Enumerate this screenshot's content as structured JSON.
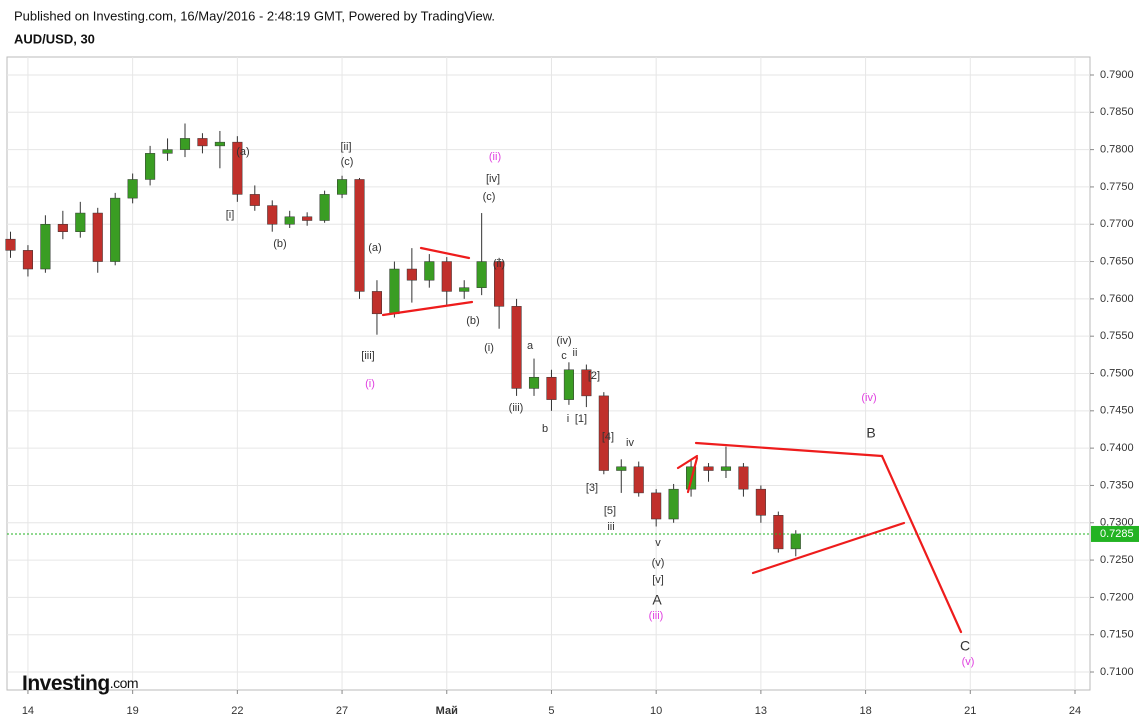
{
  "header": {
    "published": "Published on Investing.com, 16/May/2016 - 2:48:19 GMT, Powered by TradingView.",
    "symbol": "AUD/USD, 30"
  },
  "logo": {
    "brand": "Investing",
    "suffix": ".com"
  },
  "chart_data": {
    "type": "candlestick",
    "x": [
      -0.5,
      0,
      0.5,
      1,
      1.5,
      2,
      2.5,
      3,
      3.5,
      4,
      4.5,
      5,
      5.5,
      6,
      6.5,
      7,
      7.5,
      8,
      8.5,
      9,
      9.5,
      10,
      10.5,
      11,
      11.5,
      12,
      12.5,
      13,
      13.5,
      14,
      14.5,
      15,
      15.5,
      16,
      16.5,
      17,
      17.5,
      18,
      18.5,
      19,
      19.5,
      20,
      20.5,
      21,
      21.5,
      22
    ],
    "open": [
      0.768,
      0.7665,
      0.764,
      0.77,
      0.769,
      0.7715,
      0.765,
      0.7735,
      0.776,
      0.7795,
      0.78,
      0.7815,
      0.7805,
      0.781,
      0.774,
      0.7725,
      0.77,
      0.771,
      0.7705,
      0.774,
      0.776,
      0.761,
      0.758,
      0.764,
      0.7625,
      0.765,
      0.761,
      0.7615,
      0.765,
      0.759,
      0.748,
      0.7495,
      0.7465,
      0.7505,
      0.747,
      0.737,
      0.7375,
      0.734,
      0.7305,
      0.7345,
      0.7375,
      0.737,
      0.7375,
      0.7345,
      0.731,
      0.7265
    ],
    "high": [
      0.769,
      0.7672,
      0.7712,
      0.7718,
      0.773,
      0.7722,
      0.7742,
      0.7768,
      0.7805,
      0.7815,
      0.7835,
      0.7822,
      0.7825,
      0.7818,
      0.7752,
      0.7732,
      0.7718,
      0.7716,
      0.7745,
      0.7765,
      0.7762,
      0.7625,
      0.765,
      0.7668,
      0.766,
      0.7656,
      0.7625,
      0.7715,
      0.7655,
      0.76,
      0.752,
      0.7505,
      0.7515,
      0.7512,
      0.7475,
      0.7385,
      0.7382,
      0.7345,
      0.7352,
      0.7385,
      0.738,
      0.7402,
      0.738,
      0.735,
      0.7315,
      0.729
    ],
    "low": [
      0.7655,
      0.763,
      0.7635,
      0.768,
      0.7682,
      0.7635,
      0.7645,
      0.7728,
      0.7752,
      0.7785,
      0.779,
      0.7795,
      0.7775,
      0.773,
      0.7718,
      0.769,
      0.7695,
      0.7698,
      0.7702,
      0.7735,
      0.76,
      0.7552,
      0.7575,
      0.7595,
      0.7615,
      0.759,
      0.76,
      0.7605,
      0.756,
      0.747,
      0.747,
      0.745,
      0.7458,
      0.7455,
      0.7365,
      0.734,
      0.7335,
      0.7295,
      0.73,
      0.7335,
      0.7355,
      0.736,
      0.7335,
      0.73,
      0.726,
      0.7255
    ],
    "close": [
      0.7665,
      0.764,
      0.77,
      0.769,
      0.7715,
      0.765,
      0.7735,
      0.776,
      0.7795,
      0.78,
      0.7815,
      0.7805,
      0.781,
      0.774,
      0.7725,
      0.77,
      0.771,
      0.7705,
      0.774,
      0.776,
      0.761,
      0.758,
      0.764,
      0.7625,
      0.765,
      0.761,
      0.7615,
      0.765,
      0.759,
      0.748,
      0.7495,
      0.7465,
      0.7505,
      0.747,
      0.737,
      0.7375,
      0.734,
      0.7305,
      0.7345,
      0.7375,
      0.737,
      0.7375,
      0.7345,
      0.731,
      0.7265,
      0.7285
    ],
    "up_color": "#3a9d23",
    "down_color": "#c0302b",
    "xlim": [
      -0.6,
      30.43
    ],
    "xticks": [
      {
        "value": 0,
        "label": "14"
      },
      {
        "value": 3,
        "label": "19"
      },
      {
        "value": 6,
        "label": "22"
      },
      {
        "value": 9,
        "label": "27"
      },
      {
        "value": 12,
        "label": "Май"
      },
      {
        "value": 15,
        "label": "5"
      },
      {
        "value": 18,
        "label": "10"
      },
      {
        "value": 21,
        "label": "13"
      },
      {
        "value": 24,
        "label": "18"
      },
      {
        "value": 27,
        "label": "21"
      },
      {
        "value": 30,
        "label": "24"
      }
    ],
    "ylim": [
      0.70759,
      0.79241
    ],
    "yticks": [
      {
        "value": 0.71,
        "label": "0.7100"
      },
      {
        "value": 0.715,
        "label": "0.7150"
      },
      {
        "value": 0.72,
        "label": "0.7200"
      },
      {
        "value": 0.725,
        "label": "0.7250"
      },
      {
        "value": 0.73,
        "label": "0.7300"
      },
      {
        "value": 0.735,
        "label": "0.7350"
      },
      {
        "value": 0.74,
        "label": "0.7400"
      },
      {
        "value": 0.745,
        "label": "0.7450"
      },
      {
        "value": 0.75,
        "label": "0.7500"
      },
      {
        "value": 0.755,
        "label": "0.7550"
      },
      {
        "value": 0.76,
        "label": "0.7600"
      },
      {
        "value": 0.765,
        "label": "0.7650"
      },
      {
        "value": 0.77,
        "label": "0.7700"
      },
      {
        "value": 0.775,
        "label": "0.7750"
      },
      {
        "value": 0.78,
        "label": "0.7800"
      },
      {
        "value": 0.785,
        "label": "0.7850"
      },
      {
        "value": 0.79,
        "label": "0.7900"
      }
    ],
    "grid": true,
    "last_price": {
      "value": 0.7285,
      "label": "0.7285",
      "color": "#22b322"
    },
    "annotations": [
      {
        "text": "(a)",
        "color": "#333"
      },
      {
        "text": "[ii]",
        "color": "#333"
      },
      {
        "text": "(c)",
        "color": "#333"
      },
      {
        "text": "(ii)",
        "color": "#e040e0"
      },
      {
        "text": "[iv]",
        "color": "#333"
      },
      {
        "text": "(c)",
        "color": "#333"
      },
      {
        "text": "[i]",
        "color": "#333"
      },
      {
        "text": "(b)",
        "color": "#333"
      },
      {
        "text": "(a)",
        "color": "#333"
      },
      {
        "text": "(ii)",
        "color": "#333"
      },
      {
        "text": "(b)",
        "color": "#333"
      },
      {
        "text": "(i)",
        "color": "#333"
      },
      {
        "text": "[iii]",
        "color": "#333"
      },
      {
        "text": "(i)",
        "color": "#e040e0"
      },
      {
        "text": "a",
        "color": "#333"
      },
      {
        "text": "(iv)",
        "color": "#333"
      },
      {
        "text": "c",
        "color": "#333"
      },
      {
        "text": "ii",
        "color": "#333"
      },
      {
        "text": "[2]",
        "color": "#333"
      },
      {
        "text": "(iii)",
        "color": "#333"
      },
      {
        "text": "b",
        "color": "#333"
      },
      {
        "text": "i",
        "color": "#333"
      },
      {
        "text": "[1]",
        "color": "#333"
      },
      {
        "text": "[4]",
        "color": "#333"
      },
      {
        "text": "iv",
        "color": "#333"
      },
      {
        "text": "[3]",
        "color": "#333"
      },
      {
        "text": "[5]",
        "color": "#333"
      },
      {
        "text": "iii",
        "color": "#333"
      },
      {
        "text": "v",
        "color": "#333"
      },
      {
        "text": "(v)",
        "color": "#333"
      },
      {
        "text": "[v]",
        "color": "#333"
      },
      {
        "text": "A",
        "color": "#333"
      },
      {
        "text": "(iii)",
        "color": "#e040e0"
      },
      {
        "text": "(iv)",
        "color": "#e040e0"
      },
      {
        "text": "B",
        "color": "#333"
      },
      {
        "text": "C",
        "color": "#333"
      },
      {
        "text": "(v)",
        "color": "#e040e0"
      }
    ]
  }
}
